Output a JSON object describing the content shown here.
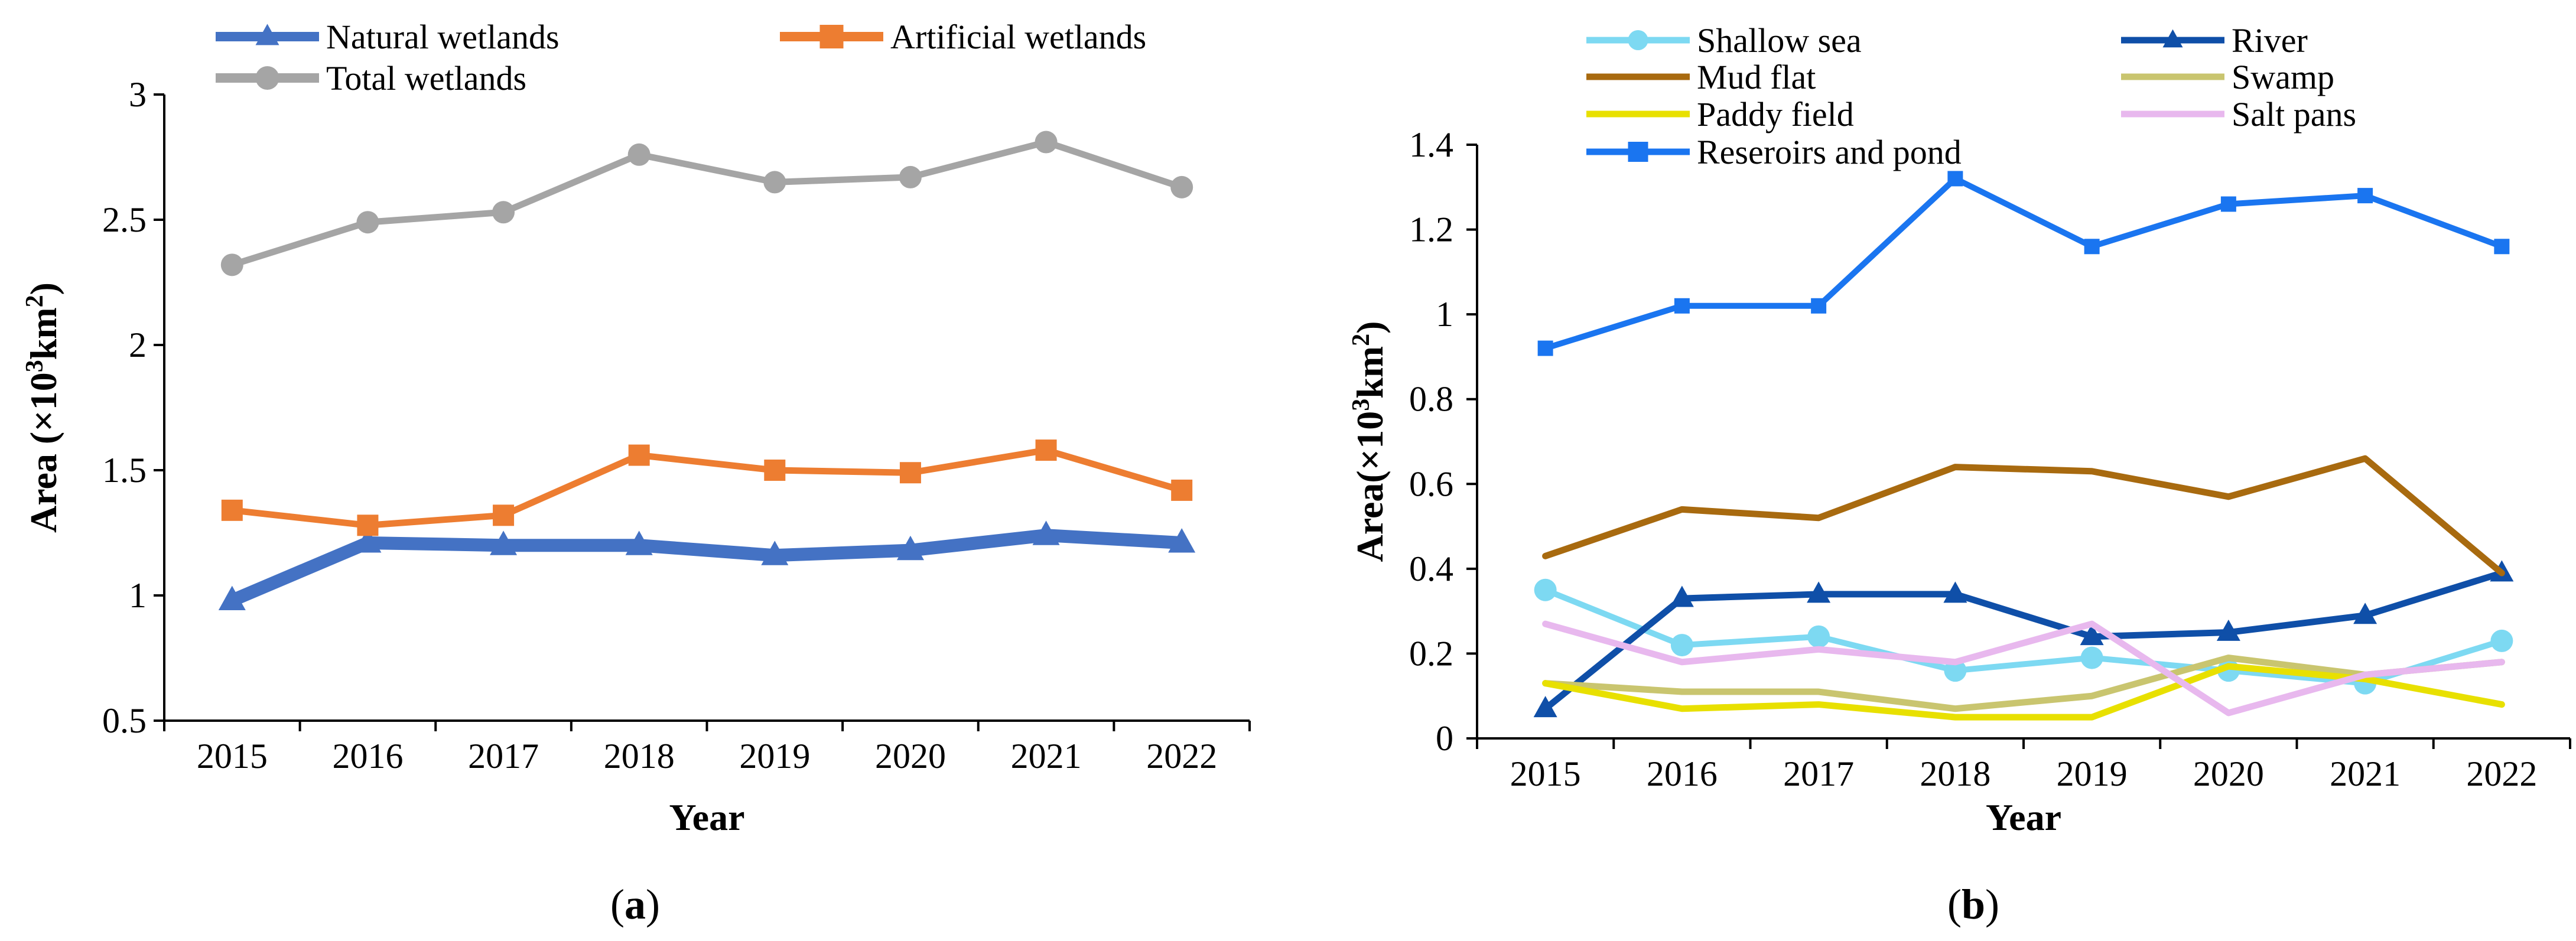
{
  "chart_data": [
    {
      "id": "a",
      "type": "line",
      "panel_label": "a",
      "xlabel": "Year",
      "ylabel": "Area (×10³km²)",
      "ylabel_parts": [
        "Area (×10",
        "3",
        "km",
        "2",
        ")"
      ],
      "categories": [
        "2015",
        "2016",
        "2017",
        "2018",
        "2019",
        "2020",
        "2021",
        "2022"
      ],
      "ylim": [
        0.5,
        3
      ],
      "yticks": [
        0.5,
        1,
        1.5,
        2,
        2.5,
        3
      ],
      "ytick_labels": [
        "0.5",
        "1",
        "1.5",
        "2",
        "2.5",
        "3"
      ],
      "grid": false,
      "legend_position": "top",
      "series": [
        {
          "name": "Natural wetlands",
          "color": "#4472C4",
          "marker": "triangle",
          "values": [
            0.98,
            1.21,
            1.2,
            1.2,
            1.16,
            1.18,
            1.24,
            1.21
          ]
        },
        {
          "name": "Artificial wetlands",
          "color": "#ED7D31",
          "marker": "square",
          "values": [
            1.34,
            1.28,
            1.32,
            1.56,
            1.5,
            1.49,
            1.58,
            1.42
          ]
        },
        {
          "name": "Total wetlands",
          "color": "#A5A5A5",
          "marker": "circle",
          "values": [
            2.32,
            2.49,
            2.53,
            2.76,
            2.65,
            2.67,
            2.81,
            2.63
          ]
        }
      ]
    },
    {
      "id": "b",
      "type": "line",
      "panel_label": "b",
      "xlabel": "Year",
      "ylabel": "Area(×10³km²)",
      "ylabel_parts": [
        "Area(×10",
        "3",
        "km",
        "2",
        ")"
      ],
      "categories": [
        "2015",
        "2016",
        "2017",
        "2018",
        "2019",
        "2020",
        "2021",
        "2022"
      ],
      "ylim": [
        0,
        1.4
      ],
      "yticks": [
        0,
        0.2,
        0.4,
        0.6,
        0.8,
        1,
        1.2,
        1.4
      ],
      "ytick_labels": [
        "0",
        "0.2",
        "0.4",
        "0.6",
        "0.8",
        "1",
        "1.2",
        "1.4"
      ],
      "grid": false,
      "legend_position": "top",
      "series": [
        {
          "name": "Shallow sea",
          "color": "#7DD9F2",
          "marker": "circle",
          "values": [
            0.35,
            0.22,
            0.24,
            0.16,
            0.19,
            0.16,
            0.13,
            0.23
          ]
        },
        {
          "name": "River",
          "color": "#0F4FA8",
          "marker": "triangle",
          "values": [
            0.07,
            0.33,
            0.34,
            0.34,
            0.24,
            0.25,
            0.29,
            0.39
          ]
        },
        {
          "name": "Mud flat",
          "color": "#A86A0F",
          "marker": "none",
          "values": [
            0.43,
            0.54,
            0.52,
            0.64,
            0.63,
            0.57,
            0.66,
            0.39
          ]
        },
        {
          "name": "Swamp",
          "color": "#C9C56F",
          "marker": "none",
          "values": [
            0.13,
            0.11,
            0.11,
            0.07,
            0.1,
            0.19,
            0.15,
            0.18
          ]
        },
        {
          "name": "Paddy field",
          "color": "#E8E000",
          "marker": "none",
          "values": [
            0.13,
            0.07,
            0.08,
            0.05,
            0.05,
            0.17,
            0.14,
            0.08
          ]
        },
        {
          "name": "Salt pans",
          "color": "#E8B8EE",
          "marker": "none",
          "values": [
            0.27,
            0.18,
            0.21,
            0.18,
            0.27,
            0.06,
            0.15,
            0.18
          ]
        },
        {
          "name": "Reseroirs and pond",
          "color": "#1A75F0",
          "marker": "square",
          "values": [
            0.92,
            1.02,
            1.02,
            1.32,
            1.16,
            1.26,
            1.28,
            1.16
          ]
        }
      ]
    }
  ]
}
